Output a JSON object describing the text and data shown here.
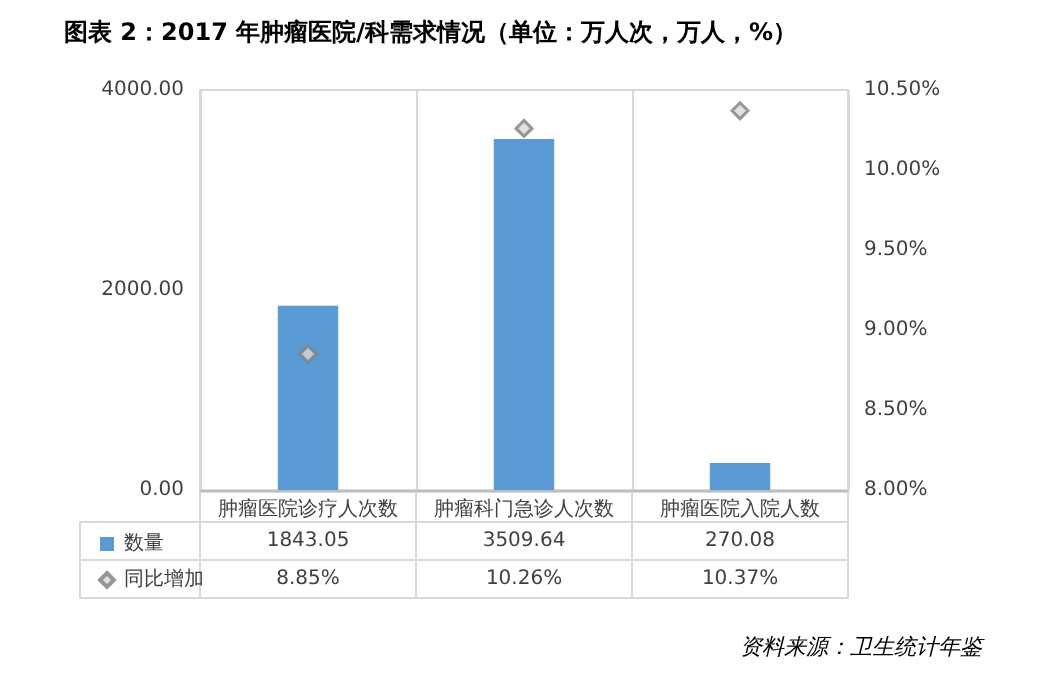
{
  "chart_data": {
    "type": "bar",
    "title": "图表 2：2017 年肿瘤医院/科需求情况（单位：万人次，万人，%）",
    "annotations": [
      "资料来源：卫生统计年鉴"
    ],
    "categories": [
      "肿瘤医院诊疗人次数",
      "肿瘤科门急诊人次数",
      "肿瘤医院入院人数"
    ],
    "series": [
      {
        "name": "数量",
        "color": "#5b9bd5",
        "values": [
          1843.05,
          3509.64,
          270.08
        ],
        "value_labels": [
          "1843.05",
          "3509.64",
          "270.08"
        ]
      },
      {
        "name": "同比增加",
        "type": "scatter",
        "axis": "y2",
        "marker": "diamond",
        "color": "#d9d9d9",
        "values": [
          8.85,
          10.26,
          10.37
        ],
        "value_labels": [
          "8.85%",
          "10.26%",
          "10.37%"
        ]
      }
    ],
    "ylim": [
      0,
      4000
    ],
    "yticks": [
      {
        "value": 0,
        "label": "0.00"
      },
      {
        "value": 2000,
        "label": "2000.00"
      },
      {
        "value": 4000,
        "label": "4000.00"
      }
    ],
    "y2lim": [
      8,
      10.5
    ],
    "y2ticks": [
      {
        "value": 8,
        "label": "8.00%"
      },
      {
        "value": 8.5,
        "label": "8.50%"
      },
      {
        "value": 9,
        "label": "9.00%"
      },
      {
        "value": 9.5,
        "label": "9.50%"
      },
      {
        "value": 10,
        "label": "10.00%"
      },
      {
        "value": 10.5,
        "label": "10.50%"
      }
    ],
    "grid": "x",
    "legend": "bottom left"
  }
}
